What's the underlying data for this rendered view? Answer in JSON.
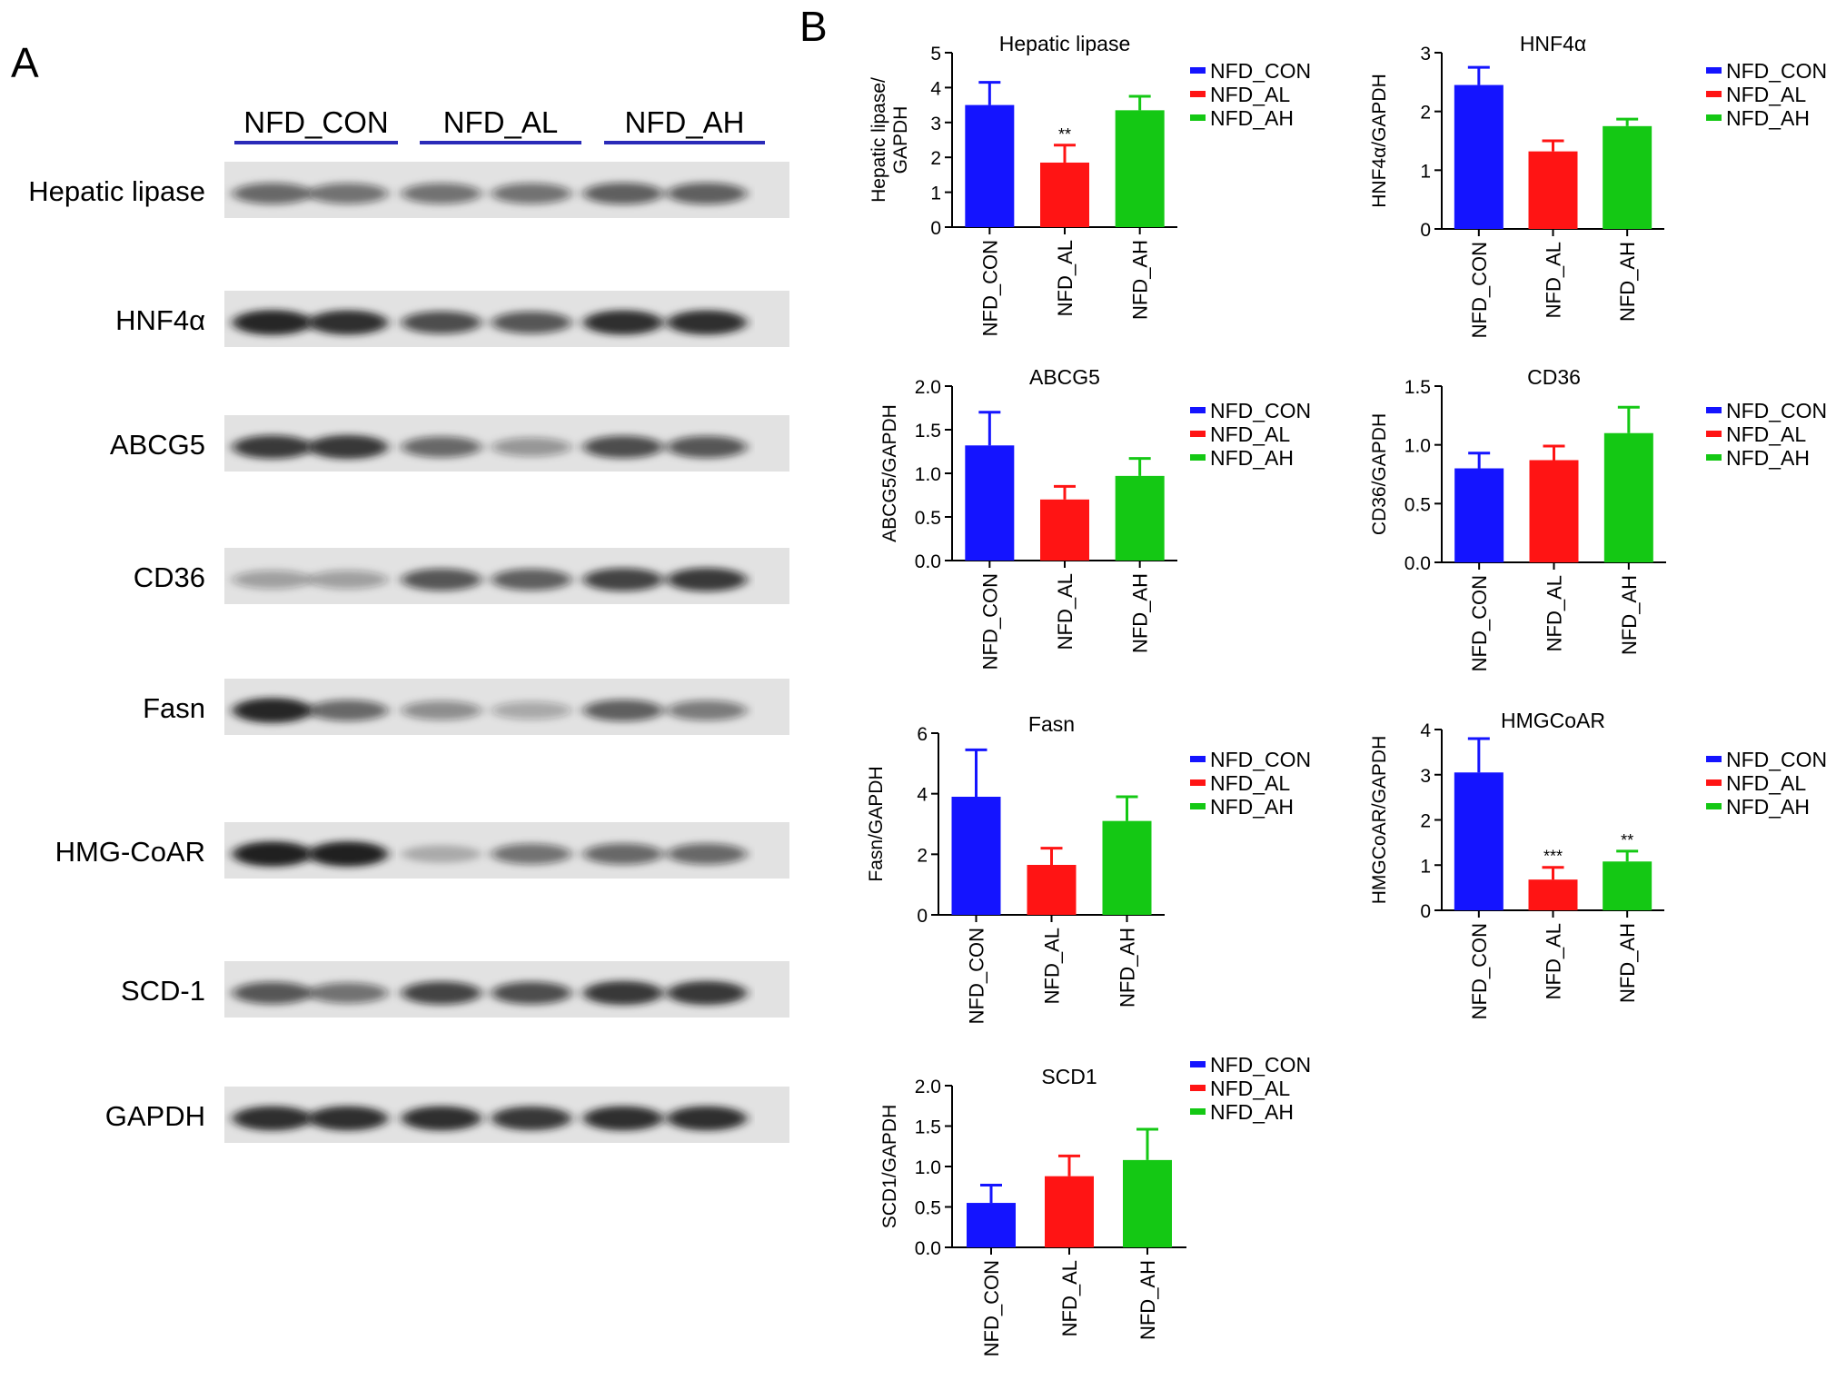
{
  "panel_a": {
    "letter": "A",
    "groups": [
      "NFD_CON",
      "NFD_AL",
      "NFD_AH"
    ],
    "blots": [
      {
        "label": "Hepatic lipase",
        "intensity": [
          0.55,
          0.5,
          0.5,
          0.5,
          0.6,
          0.6
        ]
      },
      {
        "label": "HNF4α",
        "intensity": [
          0.95,
          0.9,
          0.7,
          0.65,
          0.9,
          0.9
        ]
      },
      {
        "label": "ABCG5",
        "intensity": [
          0.8,
          0.85,
          0.55,
          0.3,
          0.7,
          0.65
        ]
      },
      {
        "label": "CD36",
        "intensity": [
          0.25,
          0.25,
          0.65,
          0.6,
          0.75,
          0.8
        ]
      },
      {
        "label": "Fasn",
        "intensity": [
          0.95,
          0.55,
          0.35,
          0.2,
          0.6,
          0.45
        ]
      },
      {
        "label": "HMG-CoAR",
        "intensity": [
          0.98,
          0.98,
          0.15,
          0.5,
          0.55,
          0.55
        ]
      },
      {
        "label": "SCD-1",
        "intensity": [
          0.65,
          0.5,
          0.75,
          0.7,
          0.85,
          0.85
        ]
      },
      {
        "label": "GAPDH",
        "intensity": [
          0.9,
          0.9,
          0.9,
          0.85,
          0.9,
          0.9
        ]
      }
    ]
  },
  "panel_b": {
    "letter": "B"
  },
  "colors": {
    "NFD_CON": "#1414ff",
    "NFD_AL": "#ff1414",
    "NFD_AH": "#14c814",
    "band": "#141414"
  },
  "chart_data": [
    {
      "type": "bar",
      "title": "Hepatic lipase",
      "ylabel": "Hepatic lipase/\nGAPDH",
      "ylim": [
        0,
        5
      ],
      "yticks": [
        "0",
        "1",
        "2",
        "3",
        "4",
        "5"
      ],
      "categories": [
        "NFD_CON",
        "NFD_AL",
        "NFD_AH"
      ],
      "values": [
        3.5,
        1.85,
        3.35
      ],
      "errors": [
        0.65,
        0.5,
        0.4
      ],
      "significance": [
        "",
        "**",
        ""
      ],
      "legend": [
        "NFD_CON",
        "NFD_AL",
        "NFD_AH"
      ]
    },
    {
      "type": "bar",
      "title": "HNF4α",
      "ylabel": "HNF4α/GAPDH",
      "ylim": [
        0,
        3
      ],
      "yticks": [
        "0",
        "1",
        "2",
        "3"
      ],
      "categories": [
        "NFD_CON",
        "NFD_AL",
        "NFD_AH"
      ],
      "values": [
        2.45,
        1.32,
        1.75
      ],
      "errors": [
        0.3,
        0.18,
        0.12
      ],
      "significance": [
        "",
        "",
        ""
      ],
      "legend": [
        "NFD_CON",
        "NFD_AL",
        "NFD_AH"
      ]
    },
    {
      "type": "bar",
      "title": "ABCG5",
      "ylabel": "ABCG5/GAPDH",
      "ylim": [
        0,
        2.0
      ],
      "yticks": [
        "0.0",
        "0.5",
        "1.0",
        "1.5",
        "2.0"
      ],
      "categories": [
        "NFD_CON",
        "NFD_AL",
        "NFD_AH"
      ],
      "values": [
        1.32,
        0.7,
        0.97
      ],
      "errors": [
        0.38,
        0.15,
        0.2
      ],
      "significance": [
        "",
        "",
        ""
      ],
      "legend": [
        "NFD_CON",
        "NFD_AL",
        "NFD_AH"
      ]
    },
    {
      "type": "bar",
      "title": "CD36",
      "ylabel": "CD36/GAPDH",
      "ylim": [
        0,
        1.5
      ],
      "yticks": [
        "0.0",
        "0.5",
        "1.0",
        "1.5"
      ],
      "categories": [
        "NFD_CON",
        "NFD_AL",
        "NFD_AH"
      ],
      "values": [
        0.8,
        0.87,
        1.1
      ],
      "errors": [
        0.13,
        0.12,
        0.22
      ],
      "significance": [
        "",
        "",
        ""
      ],
      "legend": [
        "NFD_CON",
        "NFD_AL",
        "NFD_AH"
      ]
    },
    {
      "type": "bar",
      "title": "Fasn",
      "ylabel": "Fasn/GAPDH",
      "ylim": [
        0,
        6
      ],
      "yticks": [
        "0",
        "2",
        "4",
        "6"
      ],
      "categories": [
        "NFD_CON",
        "NFD_AL",
        "NFD_AH"
      ],
      "values": [
        3.9,
        1.65,
        3.1
      ],
      "errors": [
        1.55,
        0.55,
        0.8
      ],
      "significance": [
        "",
        "",
        ""
      ],
      "legend": [
        "NFD_CON",
        "NFD_AL",
        "NFD_AH"
      ]
    },
    {
      "type": "bar",
      "title": "HMGCoAR",
      "ylabel": "HMGCoAR/GAPDH",
      "ylim": [
        0,
        4
      ],
      "yticks": [
        "0",
        "1",
        "2",
        "3",
        "4"
      ],
      "categories": [
        "NFD_CON",
        "NFD_AL",
        "NFD_AH"
      ],
      "values": [
        3.05,
        0.68,
        1.08
      ],
      "errors": [
        0.75,
        0.27,
        0.23
      ],
      "significance": [
        "",
        "***",
        "**"
      ],
      "legend": [
        "NFD_CON",
        "NFD_AL",
        "NFD_AH"
      ]
    },
    {
      "type": "bar",
      "title": "SCD1",
      "ylabel": "SCD1/GAPDH",
      "ylim": [
        0,
        2.0
      ],
      "yticks": [
        "0.0",
        "0.5",
        "1.0",
        "1.5",
        "2.0"
      ],
      "categories": [
        "NFD_CON",
        "NFD_AL",
        "NFD_AH"
      ],
      "values": [
        0.55,
        0.88,
        1.08
      ],
      "errors": [
        0.22,
        0.25,
        0.38
      ],
      "significance": [
        "",
        "",
        ""
      ],
      "legend": [
        "NFD_CON",
        "NFD_AL",
        "NFD_AH"
      ]
    }
  ]
}
